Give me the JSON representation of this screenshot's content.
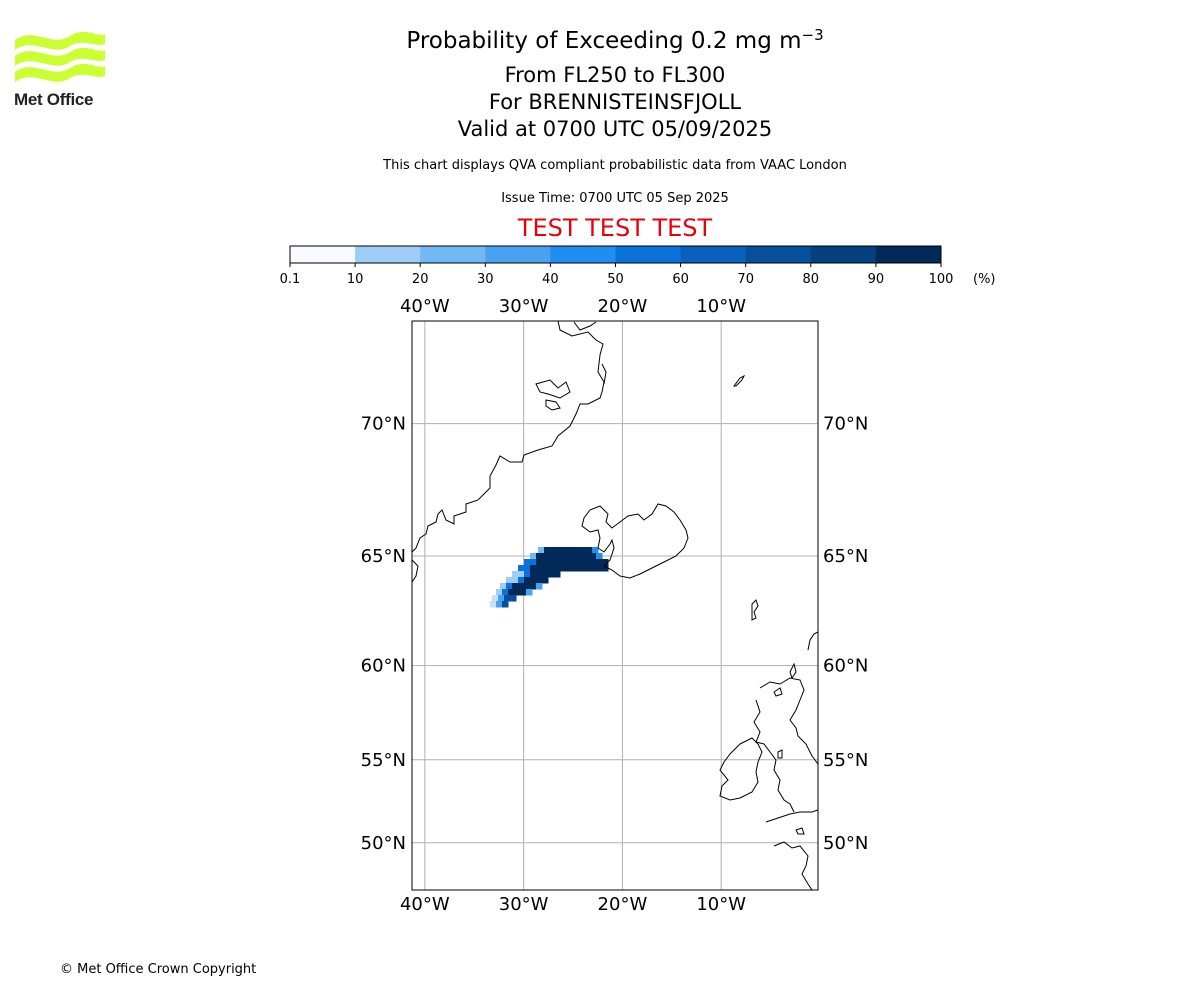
{
  "logo": {
    "name": "Met Office",
    "color": "#ccff33"
  },
  "title": {
    "main": "Probability of Exceeding 0.2 mg m",
    "exponent": "−3"
  },
  "subtitles": [
    "From FL250 to FL300",
    "For BRENNISTEINSFJOLL",
    "Valid at 0700 UTC 05/09/2025"
  ],
  "description": "This chart displays QVA compliant probabilistic data from VAAC London",
  "issue_time": "Issue Time: 0700 UTC 05 Sep 2025",
  "test_banner": "TEST TEST TEST",
  "test_color": "#e8000b",
  "colorbar": {
    "ticks": [
      "0.1",
      "10",
      "20",
      "30",
      "40",
      "50",
      "60",
      "70",
      "80",
      "90",
      "100"
    ],
    "unit": "(%)",
    "colors": [
      "#f7fbff",
      "#c6e1fa",
      "#9ecdf7",
      "#71b8f5",
      "#47a3f2",
      "#208ef0",
      "#0b72d9",
      "#0861bd",
      "#064f9c",
      "#04407e",
      "#012a58"
    ]
  },
  "map": {
    "lon_labels": [
      "40°W",
      "30°W",
      "20°W",
      "10°W"
    ],
    "lat_labels": [
      "70°N",
      "65°N",
      "60°N",
      "55°N",
      "50°N"
    ],
    "lon_values": [
      -40,
      -30,
      -20,
      -10
    ],
    "lat_values": [
      70,
      65,
      60,
      55,
      50
    ],
    "extent": {
      "lon": [
        -41.3,
        -0.2
      ],
      "lat": [
        46.9,
        73.2
      ]
    }
  },
  "footer": "© Met Office Crown Copyright"
}
